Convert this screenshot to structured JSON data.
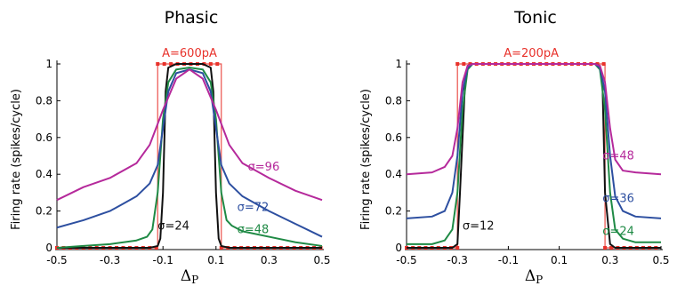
{
  "chart_data": [
    {
      "type": "line",
      "title": "Phasic",
      "xlabel": "Δ_P",
      "ylabel": "Firing rate (spikes/cycle)",
      "xlim": [
        -0.5,
        0.5
      ],
      "ylim": [
        0,
        1
      ],
      "xticks": [
        "-0.5",
        "-0.3",
        "-0.1",
        "0.1",
        "0.3",
        "0.5"
      ],
      "yticks": [
        "0",
        "0.2",
        "0.4",
        "0.6",
        "0.8",
        "1"
      ],
      "amplitude_label": "A=600pA",
      "stimulus": {
        "x": [
          -0.5,
          -0.12,
          -0.12,
          0.12,
          0.12,
          0.5
        ],
        "y": [
          0,
          0,
          1,
          1,
          0,
          0
        ],
        "color": "#e8322b"
      },
      "series": [
        {
          "name": "σ=24",
          "color": "#111111",
          "label_x": -0.12,
          "label_y": 0.1,
          "x": [
            -0.5,
            -0.15,
            -0.12,
            -0.11,
            -0.1,
            -0.09,
            -0.08,
            -0.05,
            0,
            0.05,
            0.08,
            0.09,
            0.1,
            0.11,
            0.12,
            0.15,
            0.5
          ],
          "y": [
            0,
            0,
            0.01,
            0.05,
            0.3,
            0.85,
            0.98,
            1,
            1,
            1,
            0.98,
            0.85,
            0.3,
            0.05,
            0.01,
            0,
            0
          ]
        },
        {
          "name": "σ=48",
          "color": "#1f8a45",
          "label_x": 0.18,
          "label_y": 0.08,
          "x": [
            -0.5,
            -0.4,
            -0.3,
            -0.2,
            -0.16,
            -0.14,
            -0.12,
            -0.1,
            -0.08,
            -0.05,
            0,
            0.05,
            0.08,
            0.1,
            0.12,
            0.14,
            0.16,
            0.2,
            0.3,
            0.4,
            0.5
          ],
          "y": [
            0,
            0.01,
            0.02,
            0.04,
            0.06,
            0.1,
            0.3,
            0.7,
            0.9,
            0.97,
            0.98,
            0.97,
            0.9,
            0.7,
            0.3,
            0.15,
            0.12,
            0.09,
            0.06,
            0.03,
            0.01
          ]
        },
        {
          "name": "σ=72",
          "color": "#2d4fa0",
          "label_x": 0.18,
          "label_y": 0.2,
          "x": [
            -0.5,
            -0.4,
            -0.3,
            -0.25,
            -0.2,
            -0.15,
            -0.12,
            -0.1,
            -0.08,
            -0.05,
            0,
            0.05,
            0.08,
            0.1,
            0.12,
            0.15,
            0.2,
            0.3,
            0.4,
            0.5
          ],
          "y": [
            0.11,
            0.15,
            0.2,
            0.24,
            0.28,
            0.35,
            0.45,
            0.65,
            0.85,
            0.95,
            0.97,
            0.95,
            0.85,
            0.65,
            0.45,
            0.35,
            0.28,
            0.2,
            0.13,
            0.06
          ]
        },
        {
          "name": "σ=96",
          "color": "#b5299b",
          "label_x": 0.22,
          "label_y": 0.42,
          "x": [
            -0.5,
            -0.4,
            -0.3,
            -0.2,
            -0.15,
            -0.1,
            -0.05,
            0,
            0.05,
            0.1,
            0.15,
            0.2,
            0.3,
            0.4,
            0.5
          ],
          "y": [
            0.26,
            0.33,
            0.38,
            0.46,
            0.56,
            0.75,
            0.92,
            0.97,
            0.92,
            0.75,
            0.56,
            0.46,
            0.38,
            0.31,
            0.26
          ]
        }
      ]
    },
    {
      "type": "line",
      "title": "Tonic",
      "xlabel": "Δ_P",
      "ylabel": "Firing rate (spikes/cycle)",
      "xlim": [
        -0.5,
        0.5
      ],
      "ylim": [
        0,
        1
      ],
      "xticks": [
        "-0.5",
        "-0.3",
        "-0.1",
        "0.1",
        "0.3",
        "0.5"
      ],
      "yticks": [
        "0",
        "0.2",
        "0.4",
        "0.6",
        "0.8",
        "1"
      ],
      "amplitude_label": "A=200pA",
      "stimulus": {
        "x": [
          -0.5,
          -0.3,
          -0.3,
          0.28,
          0.28,
          0.5
        ],
        "y": [
          0,
          0,
          1,
          1,
          0,
          0
        ],
        "color": "#e8322b"
      },
      "series": [
        {
          "name": "σ=12",
          "color": "#111111",
          "label_x": -0.28,
          "label_y": 0.1,
          "x": [
            -0.5,
            -0.32,
            -0.3,
            -0.29,
            -0.27,
            -0.26,
            -0.24,
            0,
            0.24,
            0.26,
            0.27,
            0.28,
            0.3,
            0.32,
            0.5
          ],
          "y": [
            0,
            0,
            0.02,
            0.3,
            0.9,
            0.99,
            1,
            1,
            1,
            0.99,
            0.9,
            0.3,
            0.02,
            0,
            0
          ]
        },
        {
          "name": "σ=24",
          "color": "#1f8a45",
          "label_x": 0.27,
          "label_y": 0.07,
          "x": [
            -0.5,
            -0.4,
            -0.35,
            -0.32,
            -0.3,
            -0.28,
            -0.26,
            -0.24,
            0,
            0.24,
            0.26,
            0.28,
            0.3,
            0.32,
            0.35,
            0.4,
            0.5
          ],
          "y": [
            0.02,
            0.02,
            0.04,
            0.1,
            0.3,
            0.75,
            0.97,
            1,
            1,
            1,
            0.97,
            0.75,
            0.3,
            0.1,
            0.05,
            0.03,
            0.03
          ]
        },
        {
          "name": "σ=36",
          "color": "#2d4fa0",
          "label_x": 0.27,
          "label_y": 0.25,
          "x": [
            -0.5,
            -0.4,
            -0.35,
            -0.32,
            -0.3,
            -0.28,
            -0.26,
            -0.24,
            0,
            0.24,
            0.26,
            0.28,
            0.3,
            0.32,
            0.35,
            0.4,
            0.5
          ],
          "y": [
            0.16,
            0.17,
            0.2,
            0.3,
            0.5,
            0.85,
            0.98,
            1,
            1,
            1,
            0.98,
            0.85,
            0.5,
            0.28,
            0.2,
            0.17,
            0.16
          ]
        },
        {
          "name": "σ=48",
          "color": "#b5299b",
          "label_x": 0.27,
          "label_y": 0.48,
          "x": [
            -0.5,
            -0.4,
            -0.35,
            -0.32,
            -0.3,
            -0.28,
            -0.26,
            -0.24,
            0,
            0.24,
            0.26,
            0.28,
            0.3,
            0.32,
            0.35,
            0.4,
            0.5
          ],
          "y": [
            0.4,
            0.41,
            0.44,
            0.5,
            0.65,
            0.9,
            0.99,
            1,
            1,
            1,
            0.99,
            0.9,
            0.65,
            0.48,
            0.42,
            0.41,
            0.4
          ]
        }
      ]
    }
  ]
}
